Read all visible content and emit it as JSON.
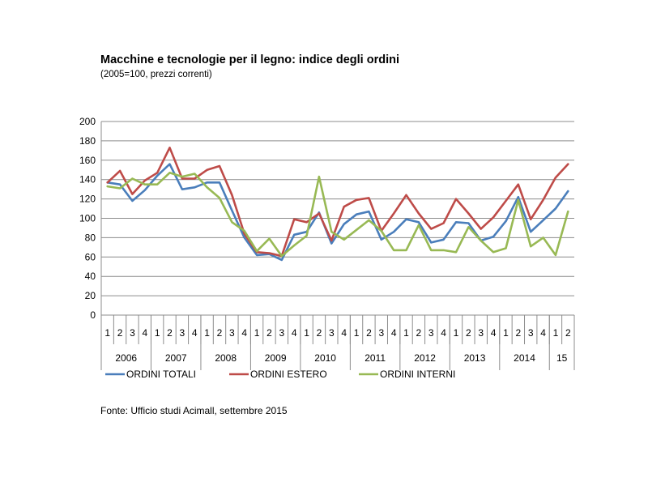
{
  "chart_data": {
    "type": "line",
    "title": "Macchine e tecnologie per il legno: indice degli ordini",
    "subtitle": "(2005=100, prezzi correnti)",
    "ylim": [
      0,
      200
    ],
    "ytick_step": 20,
    "yticks": [
      "0",
      "20",
      "40",
      "60",
      "80",
      "100",
      "120",
      "140",
      "160",
      "180",
      "200"
    ],
    "quarters": [
      "1",
      "2",
      "3",
      "4",
      "1",
      "2",
      "3",
      "4",
      "1",
      "2",
      "3",
      "4",
      "1",
      "2",
      "3",
      "4",
      "1",
      "2",
      "3",
      "4",
      "1",
      "2",
      "3",
      "4",
      "1",
      "2",
      "3",
      "4",
      "1",
      "2",
      "3",
      "4",
      "1",
      "2",
      "3",
      "4",
      "1",
      "2"
    ],
    "years": [
      {
        "label": "2006",
        "quarters": 4
      },
      {
        "label": "2007",
        "quarters": 4
      },
      {
        "label": "2008",
        "quarters": 4
      },
      {
        "label": "2009",
        "quarters": 4
      },
      {
        "label": "2010",
        "quarters": 4
      },
      {
        "label": "2011",
        "quarters": 4
      },
      {
        "label": "2012",
        "quarters": 4
      },
      {
        "label": "2013",
        "quarters": 4
      },
      {
        "label": "2014",
        "quarters": 4
      },
      {
        "label": "15",
        "quarters": 2
      }
    ],
    "series": [
      {
        "name": "ORDINI TOTALI",
        "color": "#4a7ebb",
        "values": [
          137,
          135,
          118,
          129,
          144,
          156,
          130,
          132,
          137,
          137,
          108,
          80,
          62,
          63,
          57,
          83,
          86,
          106,
          74,
          94,
          104,
          107,
          78,
          86,
          99,
          96,
          75,
          78,
          96,
          95,
          77,
          81,
          97,
          122,
          86,
          98,
          110,
          128
        ]
      },
      {
        "name": "ORDINI ESTERO",
        "color": "#be4b48",
        "values": [
          137,
          149,
          125,
          139,
          147,
          173,
          141,
          141,
          150,
          154,
          124,
          84,
          65,
          64,
          61,
          99,
          96,
          105,
          77,
          112,
          119,
          121,
          87,
          105,
          124,
          105,
          89,
          95,
          120,
          105,
          89,
          101,
          118,
          135,
          99,
          119,
          142,
          156
        ]
      },
      {
        "name": "ORDINI INTERNI",
        "color": "#98b954",
        "values": [
          133,
          131,
          141,
          135,
          135,
          147,
          143,
          146,
          132,
          121,
          96,
          87,
          66,
          79,
          61,
          72,
          82,
          143,
          86,
          78,
          88,
          98,
          87,
          67,
          67,
          93,
          67,
          67,
          65,
          91,
          77,
          65,
          69,
          119,
          71,
          80,
          62,
          107
        ]
      }
    ]
  },
  "source": "Fonte: Ufficio studi Acimall, settembre 2015"
}
